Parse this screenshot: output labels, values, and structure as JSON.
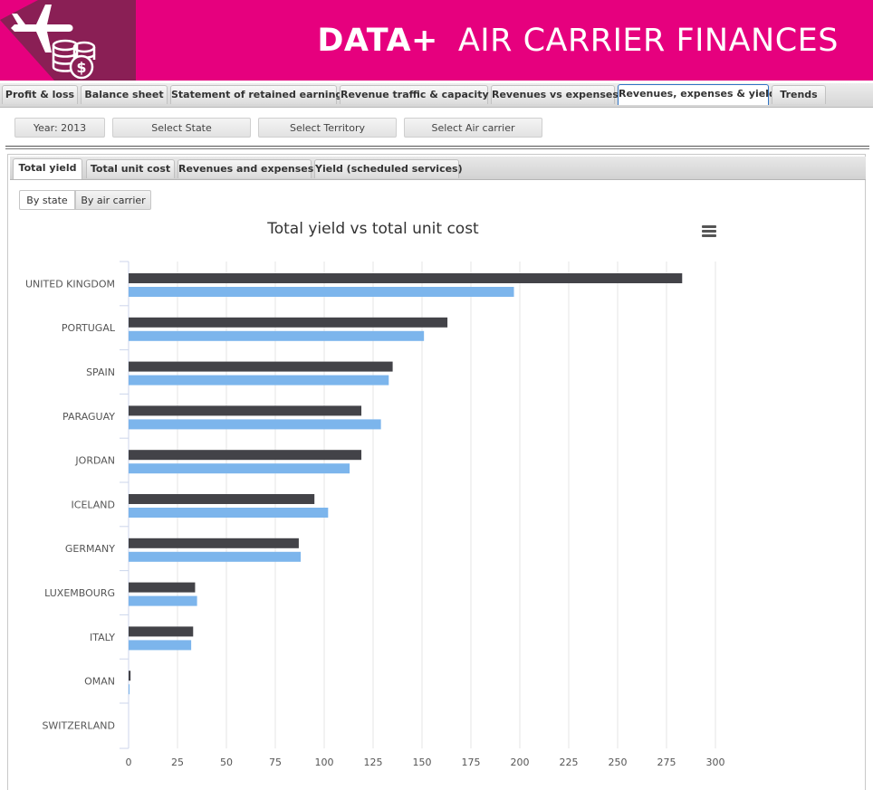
{
  "header": {
    "brand_bold": "DATA+",
    "brand_title": "AIR CARRIER FINANCES",
    "logo_icon": "airplane-coins-icon",
    "brand_color": "#e6007e"
  },
  "top_tabs": [
    {
      "label": "Profit & loss"
    },
    {
      "label": "Balance sheet"
    },
    {
      "label": "Statement of retained earnings"
    },
    {
      "label": "Revenue traffic & capacity"
    },
    {
      "label": "Revenues vs expenses"
    },
    {
      "label": "Revenues, expenses & yield",
      "active": true
    },
    {
      "label": "Trends"
    }
  ],
  "filters": {
    "year": "Year: 2013",
    "state": "Select State",
    "territory": "Select Territory",
    "carrier": "Select Air carrier"
  },
  "inner_tabs": [
    {
      "label": "Total yield",
      "active": true
    },
    {
      "label": "Total unit cost"
    },
    {
      "label": "Revenues and expenses"
    },
    {
      "label": "Yield (scheduled services)"
    }
  ],
  "toggle": {
    "by_state": "By state",
    "by_carrier": "By air carrier",
    "selected": "By state"
  },
  "chart_data": {
    "type": "bar",
    "orientation": "horizontal",
    "title": "Total yield vs total unit cost",
    "categories": [
      "UNITED KINGDOM",
      "PORTUGAL",
      "SPAIN",
      "PARAGUAY",
      "JORDAN",
      "ICELAND",
      "GERMANY",
      "LUXEMBOURG",
      "ITALY",
      "OMAN",
      "SWITZERLAND"
    ],
    "series": [
      {
        "color": "#434348",
        "values": [
          283,
          163,
          135,
          119,
          119,
          95,
          87,
          34,
          33,
          1,
          0
        ]
      },
      {
        "color": "#7cb5ec",
        "values": [
          197,
          151,
          133,
          129,
          113,
          102,
          88,
          35,
          32,
          0.5,
          0
        ]
      }
    ],
    "xlim": [
      0,
      300
    ],
    "xticks": [
      0,
      25,
      50,
      75,
      100,
      125,
      150,
      175,
      200,
      225,
      250,
      275,
      300
    ],
    "grid": true
  }
}
